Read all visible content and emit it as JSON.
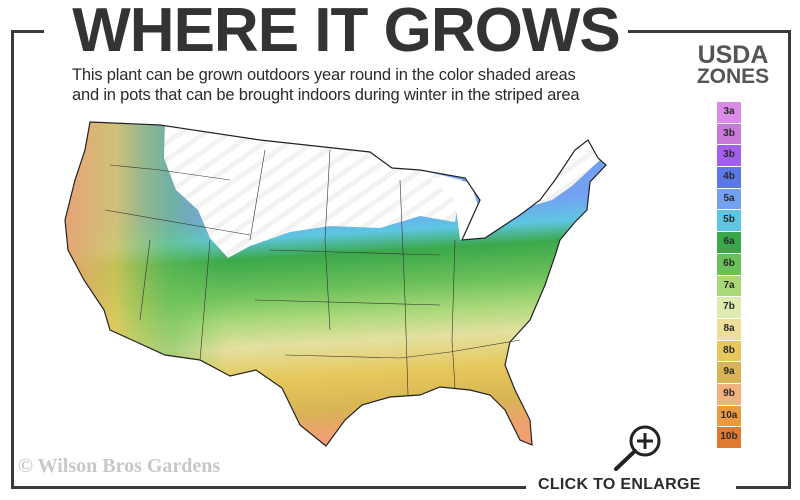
{
  "title": "WHERE IT GROWS",
  "subtitle": {
    "line1": "This plant can be grown outdoors year round in the color shaded areas",
    "line2": "and in pots that can be brought indoors during winter in the striped area"
  },
  "legend": {
    "title_line1": "USDA",
    "title_line2": "ZONES",
    "zones": [
      {
        "label": "3a",
        "color": "#d98be6"
      },
      {
        "label": "3b",
        "color": "#c77ad8"
      },
      {
        "label": "3b",
        "color": "#a260e8"
      },
      {
        "label": "4b",
        "color": "#5c78e8"
      },
      {
        "label": "5a",
        "color": "#74a0f2"
      },
      {
        "label": "5b",
        "color": "#5ec6e2"
      },
      {
        "label": "6a",
        "color": "#3aa84a"
      },
      {
        "label": "6b",
        "color": "#6cc05a"
      },
      {
        "label": "7a",
        "color": "#a8d878"
      },
      {
        "label": "7b",
        "color": "#dcebb0"
      },
      {
        "label": "8a",
        "color": "#ecdf9c"
      },
      {
        "label": "8b",
        "color": "#e6c85a"
      },
      {
        "label": "9a",
        "color": "#d8b455"
      },
      {
        "label": "9b",
        "color": "#f0b27e"
      },
      {
        "label": "10a",
        "color": "#ec9a3e"
      },
      {
        "label": "10b",
        "color": "#e07a30"
      }
    ]
  },
  "map_icons": {
    "zoom": "magnifier-plus-icon"
  },
  "copyright": "© Wilson Bros Gardens",
  "enlarge_label": "CLICK TO ENLARGE"
}
